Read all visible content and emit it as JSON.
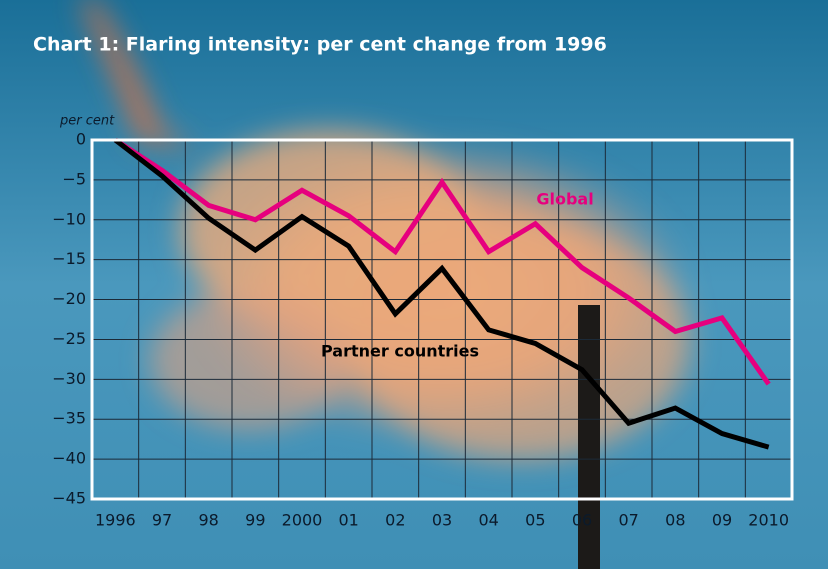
{
  "chart_data": {
    "type": "line",
    "title": "Chart 1: Flaring intensity: per cent change from 1996",
    "y_label": "per cent",
    "categories": [
      "1996",
      "97",
      "98",
      "99",
      "2000",
      "01",
      "02",
      "03",
      "04",
      "05",
      "06",
      "07",
      "08",
      "09",
      "2010"
    ],
    "series": [
      {
        "name": "Global",
        "color": "#e6007e",
        "values": [
          0,
          -3.8,
          -8.2,
          -10,
          -6.3,
          -9.5,
          -14,
          -5.3,
          -14,
          -10.5,
          -16,
          -19.8,
          -24,
          -22.3,
          -30.6
        ]
      },
      {
        "name": "Partner countries",
        "color": "#000000",
        "values": [
          0,
          -4.5,
          -9.8,
          -13.8,
          -9.6,
          -13.3,
          -21.8,
          -16.1,
          -23.8,
          -25.5,
          -28.8,
          -35.5,
          -33.6,
          -36.8,
          -38.5
        ]
      }
    ],
    "ylim": [
      -45,
      0
    ],
    "yticks": [
      0,
      {
        "value": -5,
        "label": "−5"
      },
      {
        "value": -10,
        "label": "−10"
      },
      {
        "value": -15,
        "label": "−15"
      },
      {
        "value": -20,
        "label": "−20"
      },
      {
        "value": -25,
        "label": "−25"
      },
      {
        "value": -30,
        "label": "−30"
      },
      {
        "value": -35,
        "label": "−35"
      },
      {
        "value": -40,
        "label": "−40"
      },
      {
        "value": -45,
        "label": "−45"
      }
    ],
    "grid": true
  }
}
